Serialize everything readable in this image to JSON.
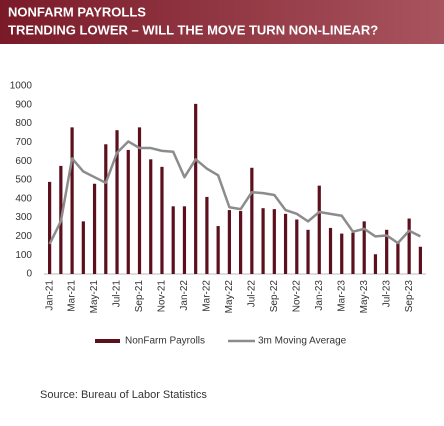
{
  "chart_data": {
    "type": "bar",
    "title": "NONFARM PAYROLLS",
    "subtitle": "TRENDING LOWER – WILL THE MOVE TURN NON-LINEAR?",
    "source": "Source:  Bureau of Labor Statistics",
    "categories": [
      "Jan-21",
      null,
      "Mar-21",
      null,
      "May-21",
      null,
      "Jul-21",
      null,
      "Sep-21",
      null,
      "Nov-21",
      null,
      "Jan-22",
      null,
      "Mar-22",
      null,
      "May-22",
      null,
      "Jul-22",
      null,
      "Sep-22",
      null,
      "Nov-22",
      null,
      "Jan-23",
      null,
      "Mar-23",
      null,
      "May-23",
      null,
      "Jul-23",
      null,
      "Sep-23",
      null
    ],
    "series": [
      {
        "name": "NonFarm Payrolls",
        "kind": "bar",
        "color": "#5c0f1c",
        "values": [
          490,
          575,
          780,
          280,
          480,
          690,
          765,
          660,
          780,
          610,
          570,
          360,
          360,
          905,
          410,
          255,
          340,
          335,
          565,
          350,
          345,
          320,
          290,
          235,
          470,
          245,
          215,
          220,
          280,
          105,
          235,
          165,
          295,
          145
        ]
      },
      {
        "name": "3m Moving Average",
        "kind": "line",
        "color": "#8c8c8c",
        "values": [
          160,
          280,
          615,
          545,
          515,
          485,
          645,
          705,
          670,
          670,
          655,
          650,
          515,
          610,
          560,
          525,
          355,
          345,
          435,
          430,
          420,
          340,
          320,
          280,
          330,
          320,
          310,
          225,
          240,
          200,
          205,
          165,
          230,
          200
        ]
      }
    ],
    "ylim": [
      0,
      1000
    ],
    "yticks": [
      0,
      100,
      200,
      300,
      400,
      500,
      600,
      700,
      800,
      900,
      1000
    ],
    "legend": "bottom"
  }
}
